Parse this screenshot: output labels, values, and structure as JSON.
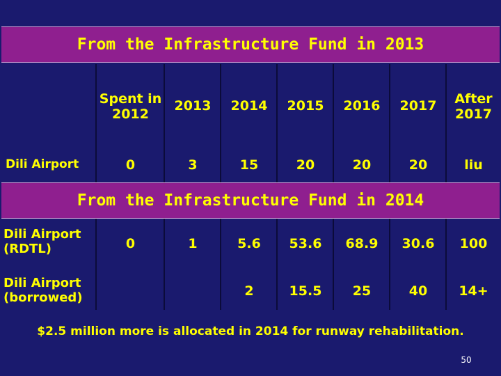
{
  "section1": {
    "title": "From the Infrastructure Fund in 2013",
    "headers": [
      "Spent in 2012",
      "2013",
      "2014",
      "2015",
      "2016",
      "2017",
      "After 2017"
    ],
    "row": {
      "label": "Dili Airport",
      "values": [
        "0",
        "3",
        "15",
        "20",
        "20",
        "20",
        "liu"
      ]
    }
  },
  "section2": {
    "title": "From the Infrastructure Fund in 2014",
    "rows": [
      {
        "label": "Dili Airport (RDTL)",
        "values": [
          "0",
          "1",
          "5.6",
          "53.6",
          "68.9",
          "30.6",
          "100"
        ]
      },
      {
        "label": "Dili Airport (borrowed)",
        "values": [
          "",
          "",
          "2",
          "15.5",
          "25",
          "40",
          "14+"
        ]
      }
    ]
  },
  "footer": "$2.5 million more is allocated in 2014 for runway rehabilitation.",
  "page_number": "50",
  "colors": {
    "background": "#1a1a6e",
    "band": "#8f1f8f",
    "text": "#ffff00"
  }
}
